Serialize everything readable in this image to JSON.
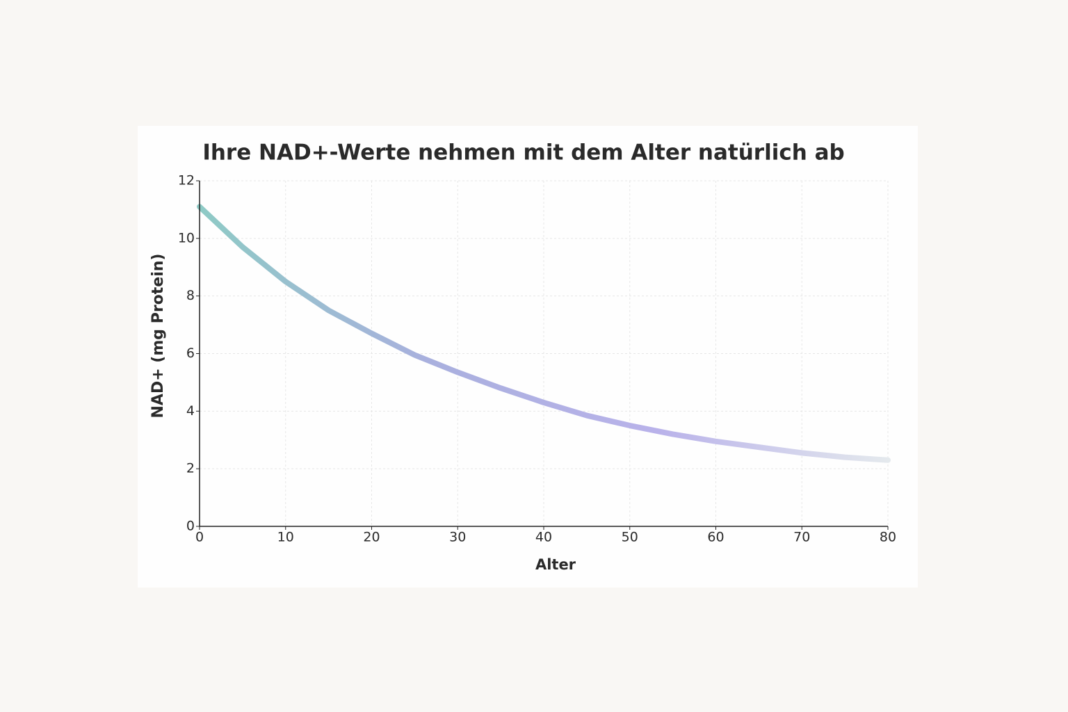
{
  "chart_data": {
    "type": "line",
    "title": "Ihre NAD+-Werte nehmen mit dem Alter natürlich ab",
    "x_label": "Alter",
    "y_label": "NAD+ (mg Protein)",
    "x": [
      0,
      5,
      10,
      15,
      20,
      25,
      30,
      35,
      40,
      45,
      50,
      55,
      60,
      65,
      70,
      75,
      80
    ],
    "series": [
      {
        "values": [
          11.1,
          9.7,
          8.5,
          7.5,
          6.7,
          5.95,
          5.35,
          4.8,
          4.3,
          3.85,
          3.5,
          3.2,
          2.95,
          2.75,
          2.55,
          2.4,
          2.3
        ],
        "gradient": [
          "#8ecac5",
          "#a9b0de",
          "#b9b2ea",
          "#e4e9ed"
        ]
      }
    ],
    "xlim": [
      0,
      80
    ],
    "xticks": [
      0,
      10,
      20,
      30,
      40,
      50,
      60,
      70,
      80
    ],
    "ylim": [
      0,
      12
    ],
    "yticks": [
      0,
      2,
      4,
      6,
      8,
      10,
      12
    ],
    "grid": true
  }
}
